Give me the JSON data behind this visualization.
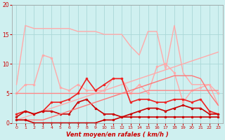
{
  "background_color": "#cff0f0",
  "grid_color": "#aad8d8",
  "text_color": "#cc0000",
  "xlabel": "Vent moyen/en rafales ( km/h )",
  "xlim": [
    -0.5,
    23.5
  ],
  "ylim": [
    0,
    20
  ],
  "xticks": [
    0,
    1,
    2,
    3,
    4,
    5,
    6,
    7,
    8,
    9,
    10,
    11,
    12,
    13,
    14,
    15,
    16,
    17,
    18,
    19,
    20,
    21,
    22,
    23
  ],
  "yticks": [
    0,
    5,
    10,
    15,
    20
  ],
  "series": [
    {
      "x": [
        0,
        1,
        2,
        3,
        4,
        5,
        6,
        7,
        8,
        9,
        10,
        11,
        12,
        13,
        14,
        15,
        16,
        17,
        18,
        19,
        20,
        21,
        22,
        23
      ],
      "y": [
        6.5,
        16.5,
        16.0,
        16.0,
        16.0,
        16.0,
        16.0,
        15.5,
        15.5,
        15.5,
        15.0,
        15.0,
        15.0,
        13.0,
        11.5,
        15.5,
        15.5,
        9.0,
        16.5,
        8.5,
        6.5,
        6.5,
        6.5,
        3.0
      ],
      "color": "#ffaaaa",
      "lw": 1.0,
      "marker": null
    },
    {
      "x": [
        0,
        1,
        2,
        3,
        4,
        5,
        6,
        7,
        8,
        9,
        10,
        11,
        12,
        13,
        14,
        15,
        16,
        17,
        18,
        19,
        20,
        21,
        22,
        23
      ],
      "y": [
        5.0,
        6.5,
        6.5,
        11.5,
        11.0,
        6.0,
        5.5,
        6.5,
        5.5,
        5.5,
        5.5,
        7.5,
        7.5,
        5.0,
        6.5,
        5.0,
        9.5,
        10.0,
        8.5,
        3.5,
        5.5,
        6.0,
        6.5,
        5.0
      ],
      "color": "#ffaaaa",
      "lw": 1.0,
      "marker": "o",
      "ms": 2.0
    },
    {
      "x": [
        0,
        1,
        2,
        3,
        4,
        5,
        6,
        7,
        8,
        9,
        10,
        11,
        12,
        13,
        14,
        15,
        16,
        17,
        18,
        19,
        20,
        21,
        22,
        23
      ],
      "y": [
        0.5,
        1.0,
        1.5,
        2.0,
        2.5,
        3.0,
        3.5,
        4.0,
        4.5,
        5.0,
        5.5,
        6.0,
        6.5,
        7.0,
        7.5,
        8.0,
        8.5,
        9.0,
        9.5,
        10.0,
        10.5,
        11.0,
        11.5,
        12.0
      ],
      "color": "#ffaaaa",
      "lw": 1.0,
      "marker": null
    },
    {
      "x": [
        0,
        1,
        2,
        3,
        4,
        5,
        6,
        7,
        8,
        9,
        10,
        11,
        12,
        13,
        14,
        15,
        16,
        17,
        18,
        19,
        20,
        21,
        22,
        23
      ],
      "y": [
        5.0,
        5.0,
        5.0,
        5.0,
        5.0,
        5.0,
        5.0,
        5.0,
        5.0,
        5.0,
        5.0,
        5.0,
        5.0,
        5.0,
        5.0,
        5.5,
        5.5,
        5.5,
        5.5,
        5.5,
        5.5,
        5.5,
        5.5,
        5.5
      ],
      "color": "#ff8888",
      "lw": 1.0,
      "marker": null
    },
    {
      "x": [
        0,
        1,
        2,
        3,
        4,
        5,
        6,
        7,
        8,
        9,
        10,
        11,
        12,
        13,
        14,
        15,
        16,
        17,
        18,
        19,
        20,
        21,
        22,
        23
      ],
      "y": [
        1.5,
        2.0,
        1.5,
        2.0,
        3.5,
        3.5,
        4.0,
        5.0,
        7.5,
        5.5,
        6.5,
        7.5,
        7.5,
        3.5,
        4.0,
        4.0,
        3.5,
        3.5,
        4.0,
        4.0,
        3.5,
        4.0,
        2.0,
        1.5
      ],
      "color": "#ee2222",
      "lw": 1.2,
      "marker": "o",
      "ms": 2.0
    },
    {
      "x": [
        0,
        1,
        2,
        3,
        4,
        5,
        6,
        7,
        8,
        9,
        10,
        11,
        12,
        13,
        14,
        15,
        16,
        17,
        18,
        19,
        20,
        21,
        22,
        23
      ],
      "y": [
        1.0,
        2.0,
        1.5,
        2.0,
        2.0,
        1.5,
        1.5,
        3.5,
        4.0,
        2.5,
        1.5,
        1.5,
        1.0,
        1.5,
        2.0,
        2.5,
        2.5,
        2.0,
        2.5,
        3.0,
        2.5,
        2.5,
        1.5,
        1.5
      ],
      "color": "#cc0000",
      "lw": 1.2,
      "marker": "o",
      "ms": 2.0
    },
    {
      "x": [
        0,
        1,
        2,
        3,
        4,
        5,
        6,
        7,
        8,
        9,
        10,
        11,
        12,
        13,
        14,
        15,
        16,
        17,
        18,
        19,
        20,
        21,
        22,
        23
      ],
      "y": [
        0.5,
        0.5,
        0.5,
        0.5,
        1.0,
        1.5,
        2.0,
        2.5,
        3.0,
        3.5,
        4.0,
        4.5,
        5.0,
        5.5,
        6.0,
        6.5,
        7.0,
        7.5,
        8.0,
        8.0,
        8.0,
        7.5,
        5.0,
        3.0
      ],
      "color": "#ff7777",
      "lw": 1.0,
      "marker": null
    },
    {
      "x": [
        0,
        1,
        2,
        3,
        4,
        5,
        6,
        7,
        8,
        9,
        10,
        11,
        12,
        13,
        14,
        15,
        16,
        17,
        18,
        19,
        20,
        21,
        22,
        23
      ],
      "y": [
        0.5,
        0.5,
        0.0,
        0.0,
        0.0,
        0.0,
        0.0,
        0.0,
        0.0,
        0.0,
        0.5,
        0.5,
        1.0,
        1.0,
        1.0,
        1.0,
        1.0,
        1.0,
        1.0,
        1.0,
        1.0,
        1.0,
        1.0,
        1.0
      ],
      "color": "#cc0000",
      "lw": 1.2,
      "marker": "o",
      "ms": 2.0
    }
  ]
}
